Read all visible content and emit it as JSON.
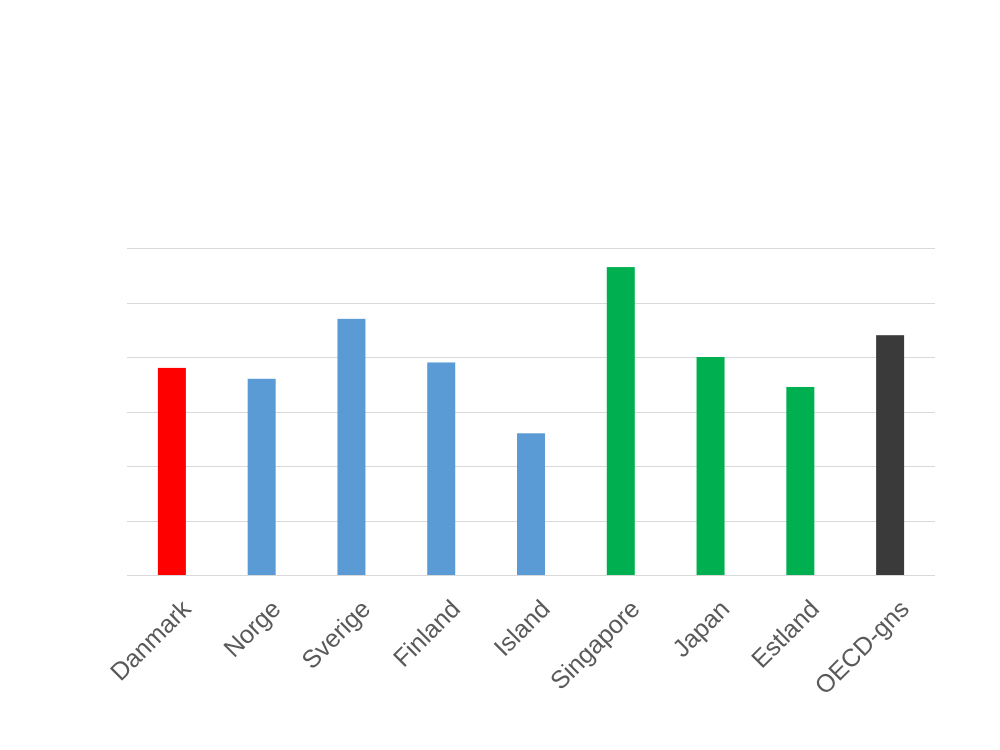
{
  "chart_data": {
    "type": "bar",
    "title": "",
    "xlabel": "",
    "ylabel": "",
    "categories": [
      "Danmark",
      "Norge",
      "Sverige",
      "Finland",
      "Island",
      "Singapore",
      "Japan",
      "Estland",
      "OECD-gns"
    ],
    "values": [
      3.8,
      3.6,
      4.7,
      3.9,
      2.6,
      5.65,
      4.0,
      3.45,
      4.4
    ],
    "ylim": [
      0,
      6
    ],
    "yticks": [
      0,
      1,
      2,
      3,
      4,
      5,
      6
    ],
    "grid": true,
    "legend": "none",
    "colors": [
      "#ff0000",
      "#5b9bd5",
      "#5b9bd5",
      "#5b9bd5",
      "#5b9bd5",
      "#00b050",
      "#00b050",
      "#00b050",
      "#3a3a3a"
    ]
  }
}
